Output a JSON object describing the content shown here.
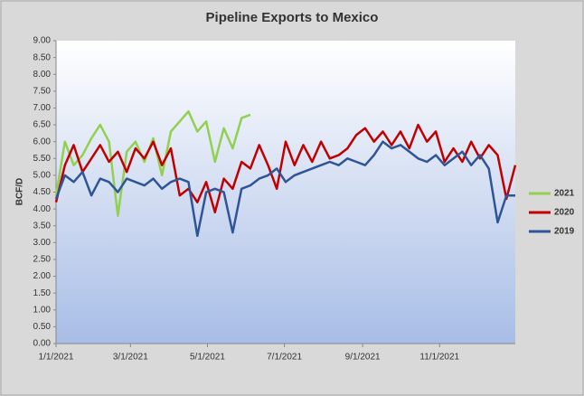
{
  "chart_data": {
    "type": "line",
    "title": "Pipeline Exports to Mexico",
    "y_label": "BCF/D",
    "x": [
      "1/1/2021",
      "1/8/2021",
      "1/15/2021",
      "1/22/2021",
      "1/29/2021",
      "2/5/2021",
      "2/12/2021",
      "2/19/2021",
      "2/26/2021",
      "3/5/2021",
      "3/12/2021",
      "3/19/2021",
      "3/26/2021",
      "4/2/2021",
      "4/9/2021",
      "4/16/2021",
      "4/23/2021",
      "4/30/2021",
      "5/7/2021",
      "5/14/2021",
      "5/21/2021",
      "5/28/2021",
      "6/4/2021",
      "6/11/2021",
      "6/18/2021",
      "6/25/2021",
      "7/2/2021",
      "7/9/2021",
      "7/16/2021",
      "7/23/2021",
      "7/30/2021",
      "8/6/2021",
      "8/13/2021",
      "8/20/2021",
      "8/27/2021",
      "9/3/2021",
      "9/10/2021",
      "9/17/2021",
      "9/24/2021",
      "10/1/2021",
      "10/8/2021",
      "10/15/2021",
      "10/22/2021",
      "10/29/2021",
      "11/5/2021",
      "11/12/2021",
      "11/19/2021",
      "11/26/2021",
      "12/3/2021",
      "12/10/2021",
      "12/17/2021",
      "12/24/2021",
      "12/31/2021"
    ],
    "series": [
      {
        "name": "2021",
        "color": "#92d050",
        "values": [
          4.4,
          6.0,
          5.3,
          5.6,
          6.1,
          6.5,
          6.0,
          3.8,
          5.7,
          6.0,
          5.4,
          6.1,
          5.0,
          6.3,
          6.6,
          6.9,
          6.3,
          6.6,
          5.4,
          6.4,
          5.8,
          6.7,
          6.8,
          null,
          null,
          null,
          null,
          null,
          null,
          null,
          null,
          null,
          null,
          null,
          null,
          null,
          null,
          null,
          null,
          null,
          null,
          null,
          null,
          null,
          null,
          null,
          null,
          null,
          null,
          null,
          null,
          null,
          null
        ]
      },
      {
        "name": "2020",
        "color": "#c00000",
        "values": [
          4.2,
          5.3,
          5.9,
          5.1,
          5.5,
          5.9,
          5.4,
          5.7,
          5.1,
          5.8,
          5.5,
          6.0,
          5.3,
          5.8,
          4.4,
          4.6,
          4.2,
          4.8,
          3.9,
          4.9,
          4.6,
          5.4,
          5.2,
          5.9,
          5.3,
          4.6,
          6.0,
          5.3,
          5.9,
          5.4,
          6.0,
          5.5,
          5.6,
          5.8,
          6.2,
          6.4,
          6.0,
          6.3,
          5.9,
          6.3,
          5.8,
          6.5,
          6.0,
          6.3,
          5.4,
          5.8,
          5.4,
          6.0,
          5.5,
          5.9,
          5.6,
          4.3,
          5.3
        ]
      },
      {
        "name": "2019",
        "color": "#2f5597",
        "values": [
          4.3,
          5.0,
          4.8,
          5.1,
          4.4,
          4.9,
          4.8,
          4.5,
          4.9,
          4.8,
          4.7,
          4.9,
          4.6,
          4.8,
          4.9,
          4.8,
          3.2,
          4.5,
          4.6,
          4.5,
          3.3,
          4.6,
          4.7,
          4.9,
          5.0,
          5.2,
          4.8,
          5.0,
          5.1,
          5.2,
          5.3,
          5.4,
          5.3,
          5.5,
          5.4,
          5.3,
          5.6,
          6.0,
          5.8,
          5.9,
          5.7,
          5.5,
          5.4,
          5.6,
          5.3,
          5.5,
          5.7,
          5.3,
          5.6,
          5.2,
          3.6,
          4.4,
          4.4
        ]
      }
    ],
    "xlim": [
      "1/1/2021",
      "12/31/2021"
    ],
    "xticks": [
      "1/1/2021",
      "3/1/2021",
      "5/1/2021",
      "7/1/2021",
      "9/1/2021",
      "11/1/2021"
    ],
    "ylim": [
      0,
      9
    ],
    "yticks": [
      {
        "value": 0,
        "label": "0.00"
      },
      {
        "value": 0.5,
        "label": "0.50"
      },
      {
        "value": 1,
        "label": "1.00"
      },
      {
        "value": 1.5,
        "label": "1.50"
      },
      {
        "value": 2,
        "label": "2.00"
      },
      {
        "value": 2.5,
        "label": "2.50"
      },
      {
        "value": 3,
        "label": "3.00"
      },
      {
        "value": 3.5,
        "label": "3.50"
      },
      {
        "value": 4,
        "label": "4.00"
      },
      {
        "value": 4.5,
        "label": "4.50"
      },
      {
        "value": 5,
        "label": "5.00"
      },
      {
        "value": 5.5,
        "label": "5.50"
      },
      {
        "value": 6,
        "label": "6.00"
      },
      {
        "value": 6.5,
        "label": "6.50"
      },
      {
        "value": 7,
        "label": "7.00"
      },
      {
        "value": 7.5,
        "label": "7.50"
      },
      {
        "value": 8,
        "label": "8.00"
      },
      {
        "value": 8.5,
        "label": "8.50"
      },
      {
        "value": 9,
        "label": "9.00"
      }
    ],
    "legend": "right"
  }
}
